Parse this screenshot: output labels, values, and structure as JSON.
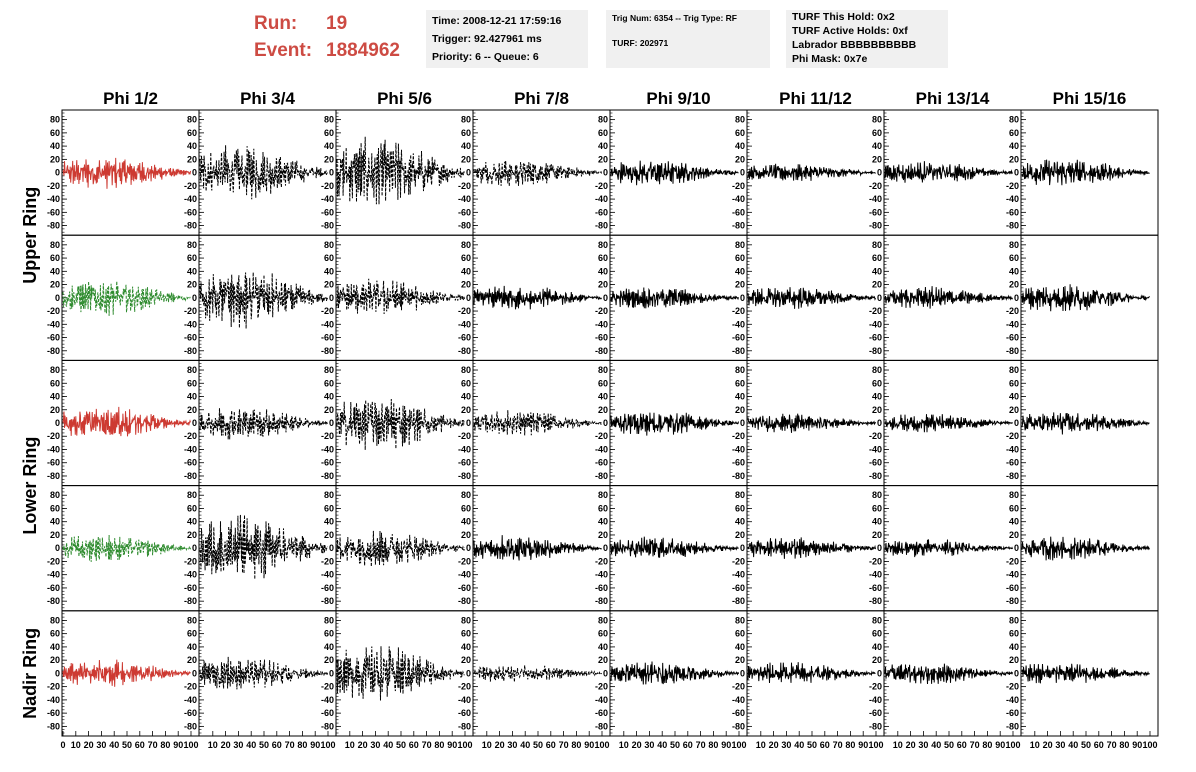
{
  "header": {
    "run_label": "Run:",
    "run_value": "19",
    "event_label": "Event:",
    "event_value": "1884962"
  },
  "info_box_1": {
    "time": "Time: 2008-12-21 17:59:16",
    "trigger": "Trigger: 92.427961 ms",
    "priority": "Priority: 6 -- Queue: 6"
  },
  "info_box_2": {
    "trig": "Trig Num: 6354 -- Trig Type: RF",
    "turf": "TURF: 202971"
  },
  "info_box_3": {
    "hold": "TURF This Hold: 0x2",
    "active": "TURF Active Holds: 0xf",
    "labrador": "Labrador BBBBBBBBBB",
    "phimask": "Phi Mask: 0x7e"
  },
  "colors": {
    "red": "#cd3a32",
    "green": "#2e8b2e",
    "black": "#000000"
  },
  "chart_data": {
    "type": "line",
    "columns": [
      "Phi 1/2",
      "Phi 3/4",
      "Phi 5/6",
      "Phi 7/8",
      "Phi 9/10",
      "Phi 11/12",
      "Phi 13/14",
      "Phi 15/16"
    ],
    "row_labels": [
      {
        "label": "Upper Ring",
        "rows": [
          0,
          1
        ]
      },
      {
        "label": "Lower Ring",
        "rows": [
          2,
          3
        ]
      },
      {
        "label": "Nadir Ring",
        "rows": [
          4,
          4
        ]
      }
    ],
    "xlim": [
      0,
      100
    ],
    "ylim": [
      -90,
      90
    ],
    "x_ticks": [
      0,
      10,
      20,
      30,
      40,
      50,
      60,
      70,
      80,
      90,
      100
    ],
    "y_ticks": [
      -80,
      -60,
      -40,
      -20,
      0,
      20,
      40,
      60,
      80
    ],
    "panel_styles": [
      [
        "red-solid",
        "black-dashed",
        "black-dashed",
        "black-dashed",
        "black-solid",
        "black-solid",
        "black-solid",
        "black-solid"
      ],
      [
        "green-dashed",
        "black-dashed",
        "black-dashed",
        "black-solid",
        "black-solid",
        "black-solid",
        "black-solid",
        "black-solid"
      ],
      [
        "red-solid",
        "black-dashed",
        "black-dashed",
        "black-dashed",
        "black-solid",
        "black-solid",
        "black-solid",
        "black-solid"
      ],
      [
        "green-dashed",
        "black-dashed",
        "black-dashed",
        "black-solid",
        "black-solid",
        "black-solid",
        "black-solid",
        "black-solid"
      ],
      [
        "red-solid",
        "black-dashed",
        "black-dashed",
        "black-dashed",
        "black-solid",
        "black-solid",
        "black-solid",
        "black-solid"
      ]
    ],
    "panel_amplitudes": [
      [
        18,
        30,
        38,
        15,
        14,
        10,
        12,
        15
      ],
      [
        20,
        32,
        20,
        14,
        12,
        12,
        12,
        15
      ],
      [
        18,
        18,
        30,
        14,
        14,
        10,
        10,
        12
      ],
      [
        15,
        38,
        20,
        14,
        12,
        12,
        10,
        13
      ],
      [
        15,
        18,
        30,
        10,
        13,
        12,
        12,
        12
      ]
    ]
  }
}
